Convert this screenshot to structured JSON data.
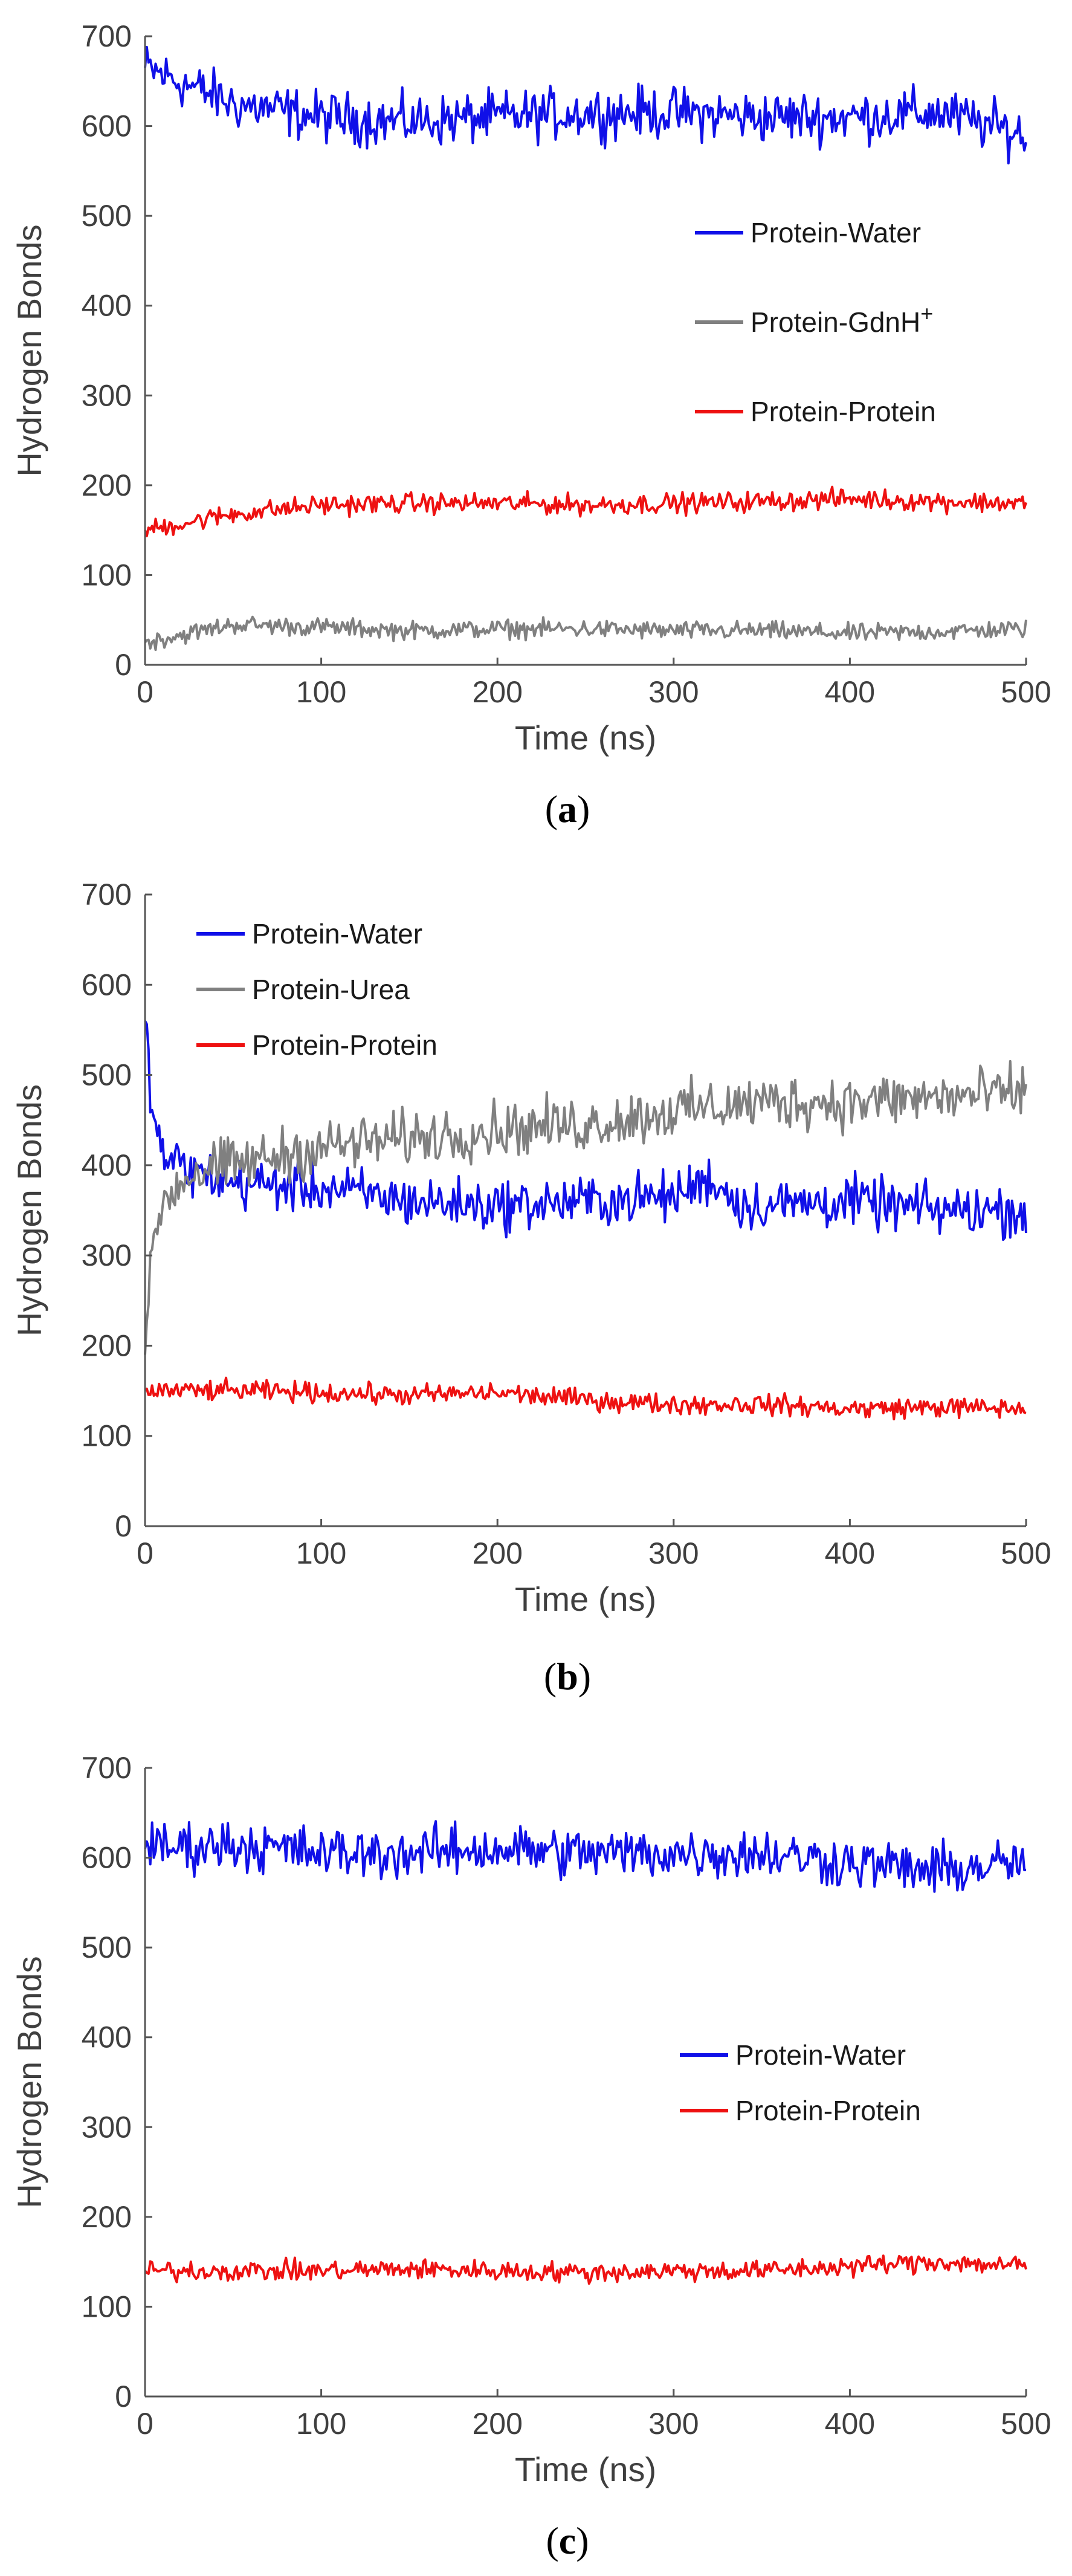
{
  "chart_data": [
    {
      "type": "line",
      "caption": "a",
      "xlabel": "Time (ns)",
      "ylabel": "Hydrogen Bonds",
      "xlim": [
        0,
        500
      ],
      "ylim": [
        0,
        700
      ],
      "xticks": [
        0,
        100,
        200,
        300,
        400,
        500
      ],
      "yticks": [
        0,
        100,
        200,
        300,
        400,
        500,
        600,
        700
      ],
      "legend_position": "right-middle",
      "series": [
        {
          "name": "Protein-Water",
          "legend_label": "Protein-Water",
          "color": "#1010e8",
          "x": [
            0,
            50,
            100,
            150,
            200,
            250,
            300,
            350,
            400,
            450,
            500
          ],
          "y": [
            665,
            625,
            610,
            605,
            610,
            615,
            615,
            610,
            610,
            615,
            590
          ]
        },
        {
          "name": "Protein-GdnH+",
          "legend_label": "Protein-GdnH",
          "legend_sup": "+",
          "color": "#808080",
          "x": [
            0,
            50,
            100,
            150,
            200,
            250,
            300,
            350,
            400,
            450,
            500
          ],
          "y": [
            25,
            45,
            42,
            38,
            40,
            40,
            38,
            38,
            35,
            37,
            40
          ]
        },
        {
          "name": "Protein-Protein",
          "legend_label": "Protein-Protein",
          "color": "#ee1111",
          "x": [
            0,
            50,
            100,
            150,
            200,
            250,
            300,
            350,
            400,
            450,
            500
          ],
          "y": [
            150,
            168,
            178,
            180,
            180,
            178,
            180,
            182,
            185,
            182,
            180
          ]
        }
      ]
    },
    {
      "type": "line",
      "caption": "b",
      "xlabel": "Time (ns)",
      "ylabel": "Hydrogen Bonds",
      "xlim": [
        0,
        500
      ],
      "ylim": [
        0,
        700
      ],
      "xticks": [
        0,
        100,
        200,
        300,
        400,
        500
      ],
      "yticks": [
        0,
        100,
        200,
        300,
        400,
        500,
        600,
        700
      ],
      "legend_position": "top-left",
      "series": [
        {
          "name": "Protein-Water",
          "legend_label": "Protein-Water",
          "color": "#1010e8",
          "x": [
            0,
            5,
            10,
            25,
            50,
            100,
            150,
            200,
            250,
            300,
            320,
            340,
            400,
            450,
            500
          ],
          "y": [
            560,
            450,
            410,
            395,
            380,
            375,
            360,
            355,
            360,
            365,
            385,
            355,
            360,
            350,
            350
          ]
        },
        {
          "name": "Protein-Urea",
          "legend_label": "Protein-Urea",
          "color": "#808080",
          "x": [
            0,
            5,
            10,
            25,
            50,
            100,
            150,
            200,
            250,
            300,
            350,
            400,
            450,
            500
          ],
          "y": [
            190,
            320,
            360,
            390,
            400,
            420,
            430,
            440,
            445,
            460,
            470,
            470,
            475,
            480
          ]
        },
        {
          "name": "Protein-Protein",
          "legend_label": "Protein-Protein",
          "color": "#ee1111",
          "x": [
            0,
            50,
            100,
            150,
            200,
            250,
            300,
            350,
            400,
            450,
            500
          ],
          "y": [
            150,
            150,
            148,
            145,
            148,
            140,
            135,
            135,
            130,
            132,
            130
          ]
        }
      ]
    },
    {
      "type": "line",
      "caption": "c",
      "xlabel": "Time (ns)",
      "ylabel": "Hydrogen Bonds",
      "xlim": [
        0,
        500
      ],
      "ylim": [
        0,
        700
      ],
      "xticks": [
        0,
        100,
        200,
        300,
        400,
        500
      ],
      "yticks": [
        0,
        100,
        200,
        300,
        400,
        500,
        600,
        700
      ],
      "legend_position": "right-middle",
      "series": [
        {
          "name": "Protein-Water",
          "legend_label": "Protein-Water",
          "color": "#1010e8",
          "x": [
            0,
            50,
            100,
            150,
            200,
            250,
            300,
            350,
            400,
            450,
            500
          ],
          "y": [
            610,
            615,
            605,
            605,
            610,
            605,
            605,
            605,
            595,
            585,
            595
          ]
        },
        {
          "name": "Protein-Protein",
          "legend_label": "Protein-Protein",
          "color": "#ee1111",
          "x": [
            0,
            50,
            100,
            150,
            200,
            250,
            300,
            350,
            400,
            450,
            500
          ],
          "y": [
            140,
            140,
            140,
            142,
            140,
            138,
            140,
            140,
            145,
            150,
            145
          ]
        }
      ]
    }
  ]
}
